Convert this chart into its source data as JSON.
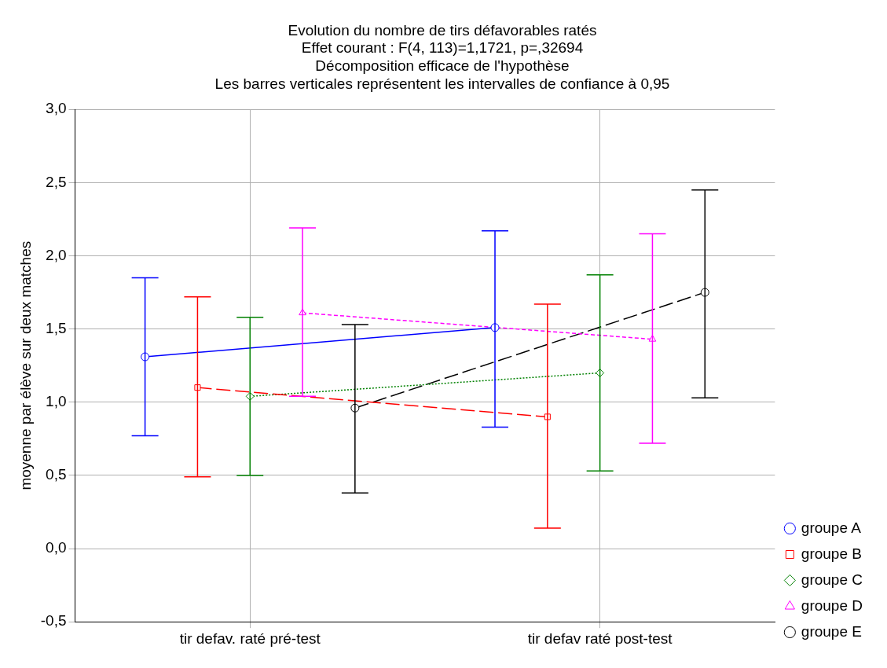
{
  "chart_data": {
    "type": "line",
    "title": "Evolution du nombre de tirs défavorables ratés",
    "subtitle": "Effet courant : F(4, 113)=1,1721, p=,32694",
    "annotations": [
      "Décomposition efficace de l'hypothèse",
      "Les barres verticales représentent les intervalles de confiance à 0,95"
    ],
    "ylabel": "moyenne par élève sur deux matches",
    "categories": [
      "tir defav. raté pré-test",
      "tir defav raté post-test"
    ],
    "series": [
      {
        "name": "groupe A",
        "color": "#0000ff",
        "values": [
          1.31,
          1.51
        ],
        "errors": [
          [
            0.77,
            1.85
          ],
          [
            0.83,
            2.17
          ]
        ],
        "marker": "circle",
        "line_style": "solid"
      },
      {
        "name": "groupe B",
        "color": "#ff0000",
        "values": [
          1.1,
          0.9
        ],
        "errors": [
          [
            0.49,
            1.72
          ],
          [
            0.14,
            1.67
          ]
        ],
        "marker": "square",
        "line_style": "dashed"
      },
      {
        "name": "groupe C",
        "color": "#008000",
        "values": [
          1.04,
          1.2
        ],
        "errors": [
          [
            0.5,
            1.58
          ],
          [
            0.53,
            1.87
          ]
        ],
        "marker": "diamond",
        "line_style": "dotted"
      },
      {
        "name": "groupe D",
        "color": "#ff00ff",
        "values": [
          1.61,
          1.43
        ],
        "errors": [
          [
            1.04,
            2.19
          ],
          [
            0.72,
            2.15
          ]
        ],
        "marker": "triangle",
        "line_style": "dashed"
      },
      {
        "name": "groupe E",
        "color": "#000000",
        "values": [
          0.96,
          1.75
        ],
        "errors": [
          [
            0.38,
            1.53
          ],
          [
            1.03,
            2.45
          ]
        ],
        "marker": "circle",
        "line_style": "dashed"
      }
    ],
    "ylim": [
      -0.5,
      3.0
    ],
    "yticks": [
      {
        "value": -0.5,
        "label": "-0,5"
      },
      {
        "value": 0,
        "label": "0,0"
      },
      {
        "value": 0.5,
        "label": "0,5"
      },
      {
        "value": 1,
        "label": "1,0"
      },
      {
        "value": 1.5,
        "label": "1,5"
      },
      {
        "value": 2,
        "label": "2,0"
      },
      {
        "value": 2.5,
        "label": "2,5"
      },
      {
        "value": 3,
        "label": "3,0"
      }
    ],
    "grid": true,
    "legend": "right"
  }
}
